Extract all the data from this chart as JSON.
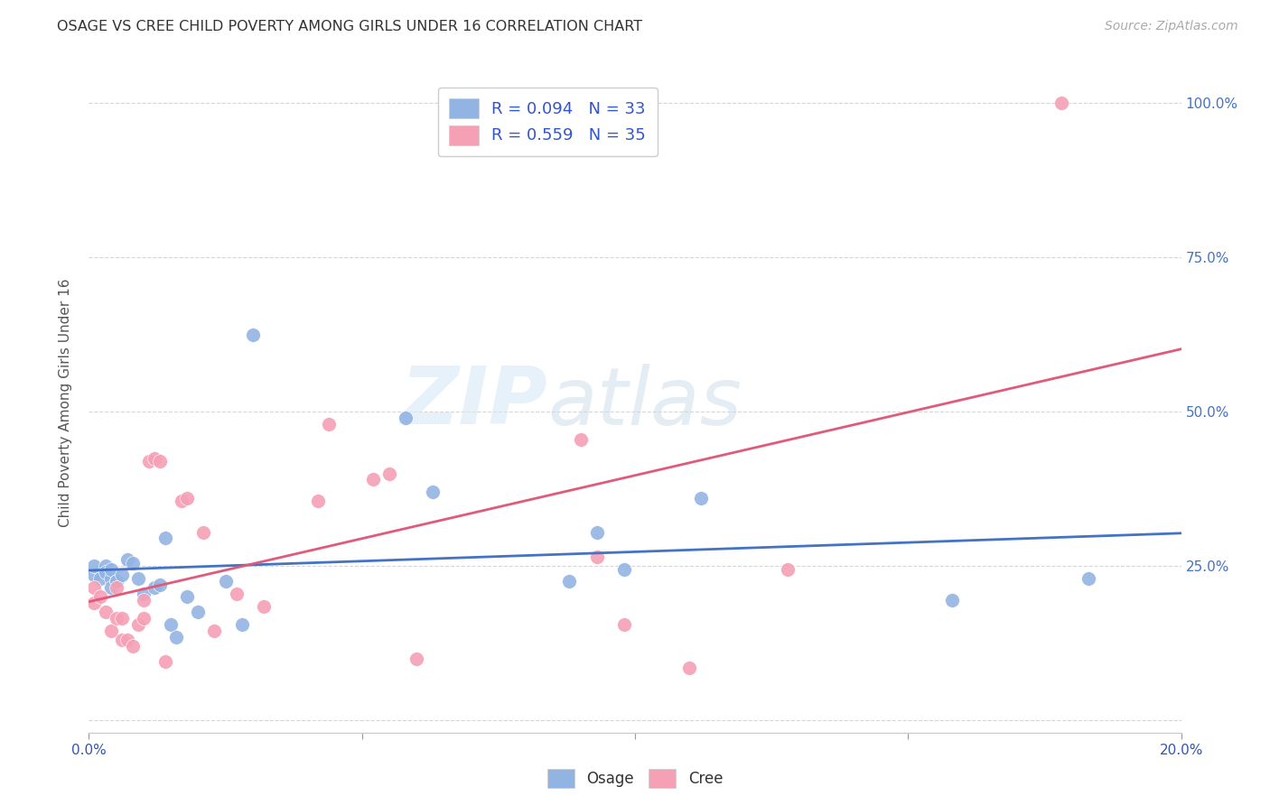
{
  "title": "OSAGE VS CREE CHILD POVERTY AMONG GIRLS UNDER 16 CORRELATION CHART",
  "source": "Source: ZipAtlas.com",
  "ylabel": "Child Poverty Among Girls Under 16",
  "xlim": [
    0.0,
    0.2
  ],
  "ylim": [
    -0.02,
    1.05
  ],
  "xtick_positions": [
    0.0,
    0.05,
    0.1,
    0.15,
    0.2
  ],
  "xtick_labels": [
    "0.0%",
    "",
    "",
    "",
    "20.0%"
  ],
  "ytick_positions": [
    0.0,
    0.25,
    0.5,
    0.75,
    1.0
  ],
  "ytick_labels_right": [
    "",
    "25.0%",
    "50.0%",
    "75.0%",
    "100.0%"
  ],
  "osage_color": "#92b4e3",
  "cree_color": "#f5a0b5",
  "osage_line_color": "#4472c4",
  "cree_line_color": "#e05a7a",
  "legend_label_1": "R = 0.094   N = 33",
  "legend_label_2": "R = 0.559   N = 35",
  "bottom_legend_osage": "Osage",
  "bottom_legend_cree": "Cree",
  "watermark_zip": "ZIP",
  "watermark_atlas": "atlas",
  "osage_x": [
    0.001,
    0.001,
    0.002,
    0.003,
    0.003,
    0.004,
    0.004,
    0.004,
    0.005,
    0.005,
    0.006,
    0.007,
    0.008,
    0.009,
    0.01,
    0.012,
    0.013,
    0.014,
    0.015,
    0.016,
    0.018,
    0.02,
    0.025,
    0.028,
    0.03,
    0.058,
    0.063,
    0.088,
    0.093,
    0.098,
    0.112,
    0.158,
    0.183
  ],
  "osage_y": [
    0.235,
    0.25,
    0.23,
    0.25,
    0.24,
    0.23,
    0.245,
    0.215,
    0.225,
    0.225,
    0.235,
    0.26,
    0.255,
    0.23,
    0.205,
    0.215,
    0.22,
    0.295,
    0.155,
    0.135,
    0.2,
    0.175,
    0.225,
    0.155,
    0.625,
    0.49,
    0.37,
    0.225,
    0.305,
    0.245,
    0.36,
    0.195,
    0.23
  ],
  "cree_x": [
    0.001,
    0.001,
    0.002,
    0.003,
    0.004,
    0.005,
    0.005,
    0.006,
    0.006,
    0.007,
    0.008,
    0.009,
    0.01,
    0.01,
    0.011,
    0.012,
    0.013,
    0.014,
    0.017,
    0.018,
    0.021,
    0.023,
    0.027,
    0.032,
    0.042,
    0.044,
    0.052,
    0.055,
    0.06,
    0.09,
    0.093,
    0.098,
    0.11,
    0.128,
    0.178
  ],
  "cree_y": [
    0.19,
    0.215,
    0.2,
    0.175,
    0.145,
    0.215,
    0.165,
    0.13,
    0.165,
    0.13,
    0.12,
    0.155,
    0.195,
    0.165,
    0.42,
    0.425,
    0.42,
    0.095,
    0.355,
    0.36,
    0.305,
    0.145,
    0.205,
    0.185,
    0.355,
    0.48,
    0.39,
    0.4,
    0.1,
    0.455,
    0.265,
    0.155,
    0.085,
    0.245,
    1.0
  ],
  "background_color": "#ffffff",
  "grid_color": "#cccccc"
}
